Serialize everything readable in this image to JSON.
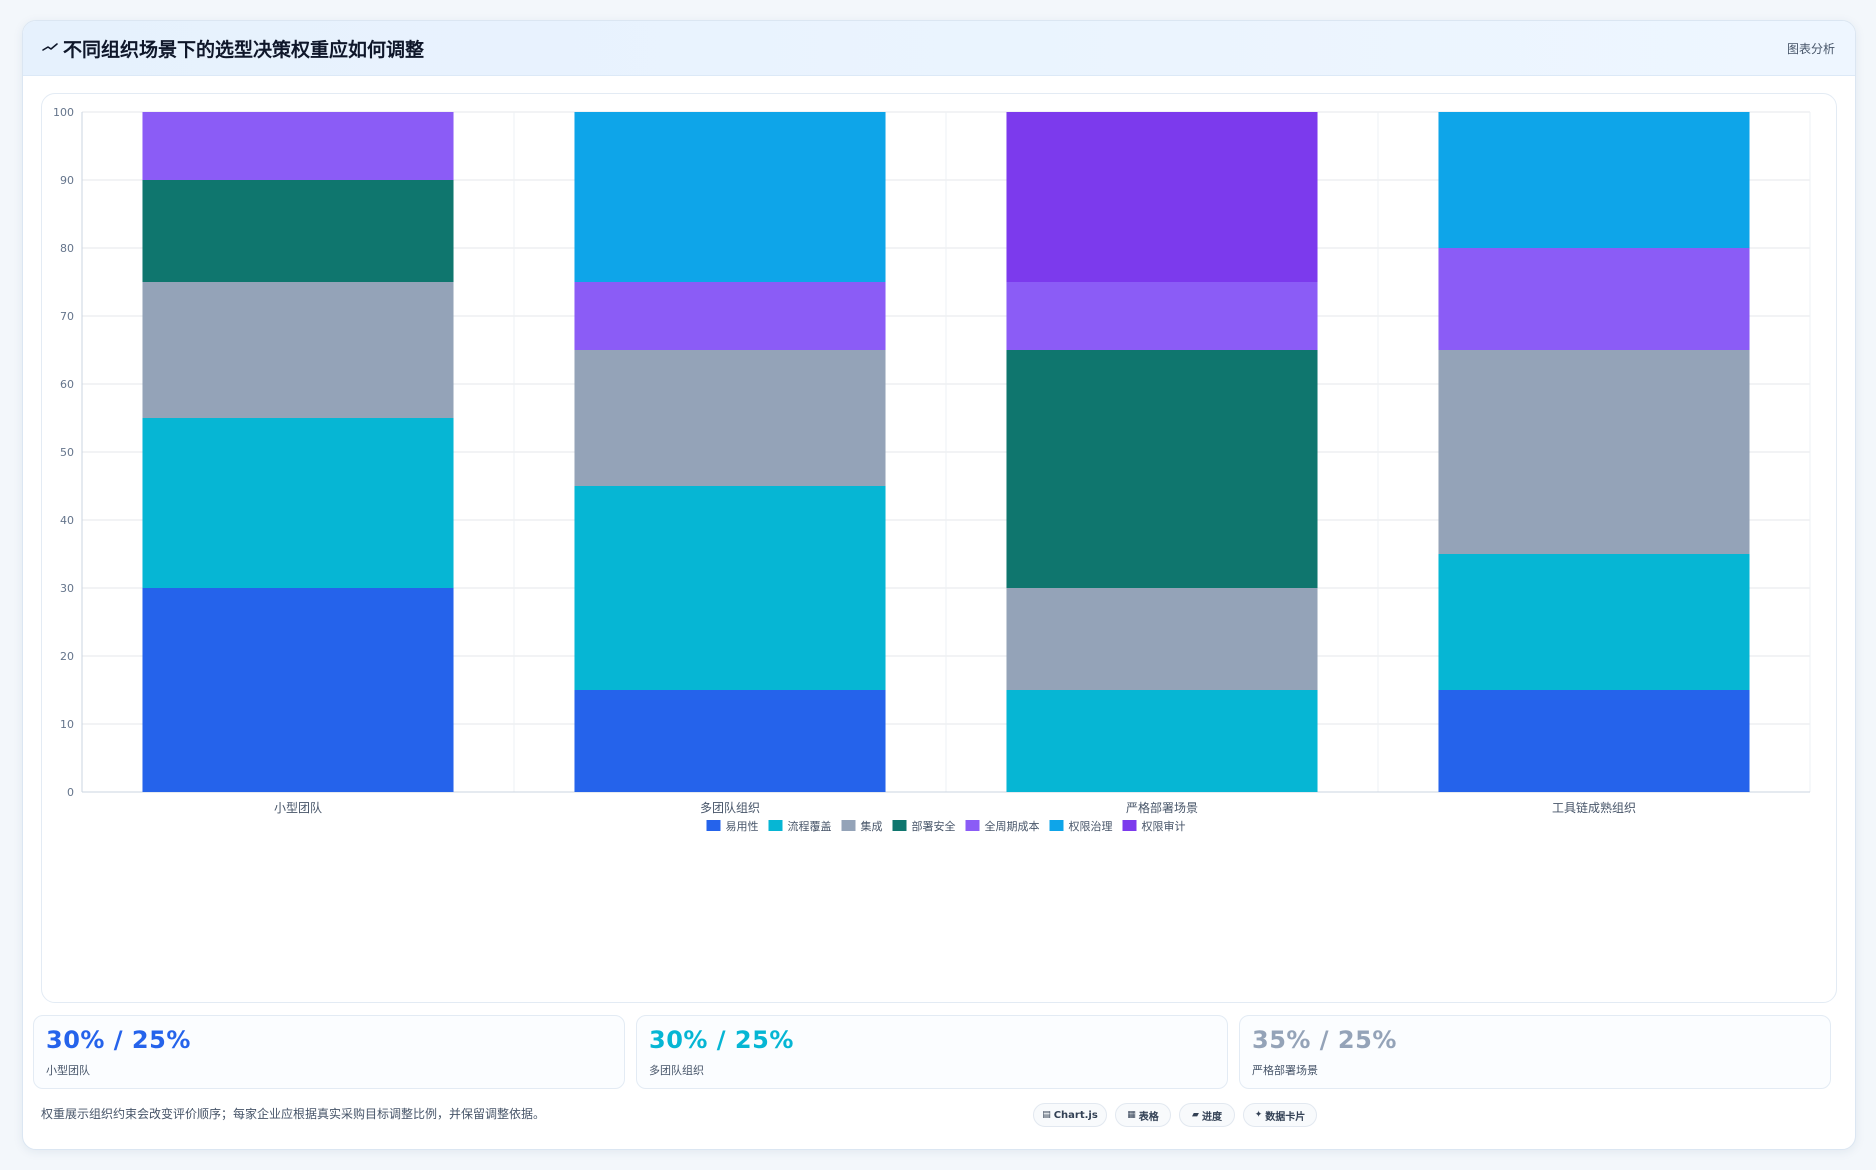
{
  "header": {
    "title": "不同组织场景下的选型决策权重应如何调整",
    "tag": "图表分析"
  },
  "chart_data": {
    "type": "bar",
    "stacked": true,
    "categories": [
      "小型团队",
      "多团队组织",
      "严格部署场景",
      "工具链成熟组织"
    ],
    "series": [
      {
        "name": "易用性",
        "color": "#2563eb",
        "values": [
          30,
          15,
          0,
          15
        ]
      },
      {
        "name": "流程覆盖",
        "color": "#06b6d4",
        "values": [
          25,
          30,
          15,
          20
        ]
      },
      {
        "name": "集成",
        "color": "#94a3b8",
        "values": [
          20,
          20,
          15,
          30
        ]
      },
      {
        "name": "部署安全",
        "color": "#0f766e",
        "values": [
          15,
          0,
          35,
          0
        ]
      },
      {
        "name": "全周期成本",
        "color": "#8b5cf6",
        "values": [
          10,
          10,
          10,
          15
        ]
      },
      {
        "name": "权限治理",
        "color": "#0ea5e9",
        "values": [
          0,
          25,
          0,
          20
        ]
      },
      {
        "name": "权限审计",
        "color": "#7c3aed",
        "values": [
          0,
          0,
          25,
          0
        ]
      }
    ],
    "ylim": [
      0,
      100
    ],
    "yticks": [
      0,
      10,
      20,
      30,
      40,
      50,
      60,
      70,
      80,
      90,
      100
    ],
    "grid": true,
    "legend": "bottom"
  },
  "kpis": [
    {
      "value": "30% / 25%",
      "label": "小型团队",
      "color": "#2563eb"
    },
    {
      "value": "30% / 25%",
      "label": "多团队组织",
      "color": "#06b6d4"
    },
    {
      "value": "35% / 25%",
      "label": "严格部署场景",
      "color": "#94a3b8"
    }
  ],
  "footnote": "权重展示组织约束会改变评价顺序；每家企业应根据真实采购目标调整比例，并保留调整依据。",
  "pills": [
    {
      "icon": "▤",
      "label": "Chart.js"
    },
    {
      "icon": "▦",
      "label": "表格"
    },
    {
      "icon": "▰",
      "label": "进度"
    },
    {
      "icon": "✦",
      "label": "数据卡片"
    }
  ]
}
